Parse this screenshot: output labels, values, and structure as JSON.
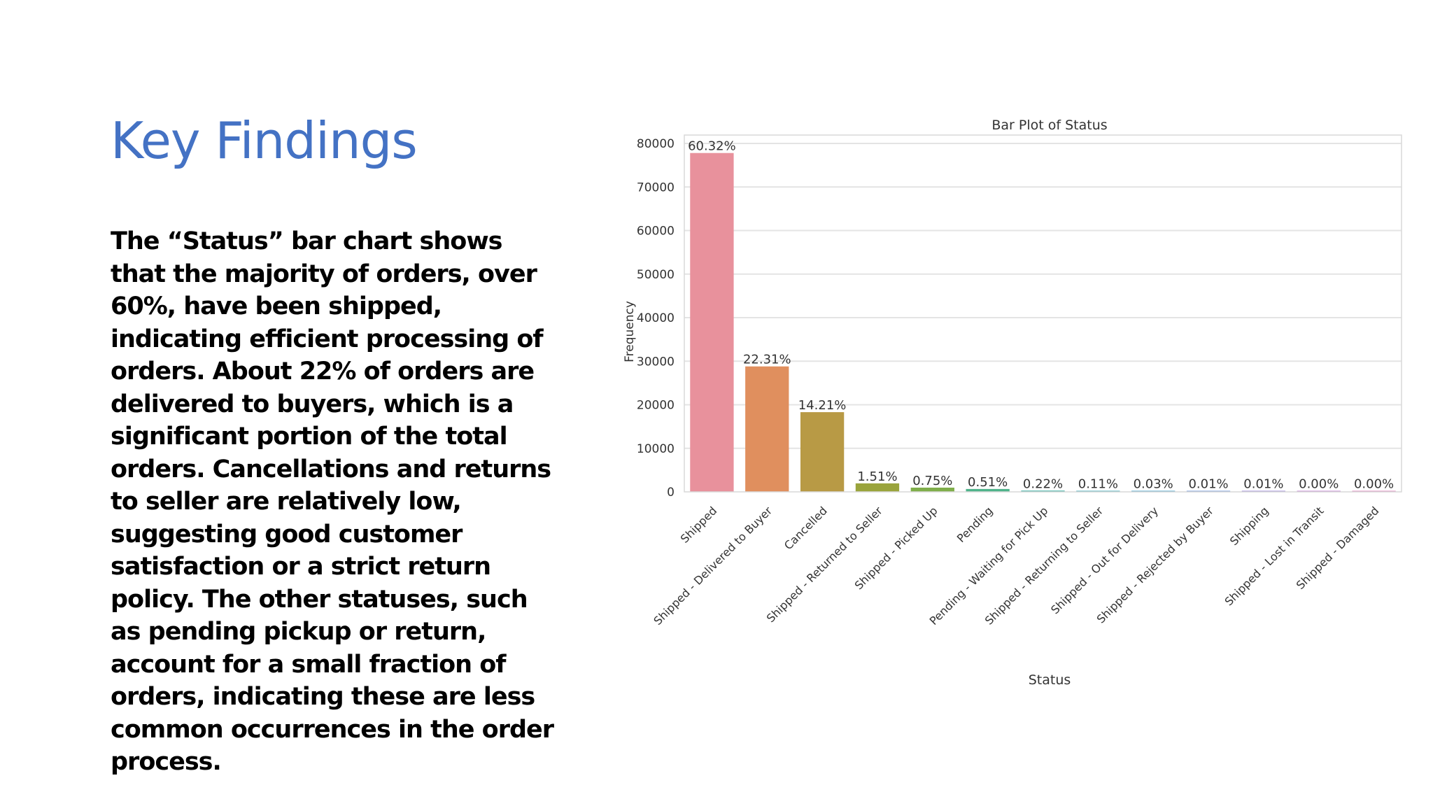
{
  "slide": {
    "title": "Key Findings",
    "body": "The “Status” bar chart shows that the majority of orders, over 60%, have been shipped, indicating efficient processing of orders. About 22% of orders are delivered to buyers, which is a significant portion of the total orders. Cancellations and returns to seller are relatively low, suggesting good customer satisfaction or a strict return policy. The other statuses, such as pending pickup or return, account for a small fraction of orders, indicating these are less common occurrences in the order process."
  },
  "colors": {
    "title": "#4472c4",
    "text": "#000000"
  },
  "chart_data": {
    "type": "bar",
    "title": "Bar Plot of Status",
    "xlabel": "Status",
    "ylabel": "Frequency",
    "ylim": [
      0,
      80000
    ],
    "yticks": [
      0,
      10000,
      20000,
      30000,
      40000,
      50000,
      60000,
      70000,
      80000
    ],
    "grid": true,
    "bars": [
      {
        "category": "Shipped",
        "value": 77800,
        "label": "60.32%",
        "color": "#e8919c"
      },
      {
        "category": "Shipped - Delivered to Buyer",
        "value": 28800,
        "label": "22.31%",
        "color": "#e08f5e"
      },
      {
        "category": "Cancelled",
        "value": 18300,
        "label": "14.21%",
        "color": "#b89a45"
      },
      {
        "category": "Shipped - Returned to Seller",
        "value": 1950,
        "label": "1.51%",
        "color": "#9aa43c"
      },
      {
        "category": "Shipped - Picked Up",
        "value": 970,
        "label": "0.75%",
        "color": "#7fae4a"
      },
      {
        "category": "Pending",
        "value": 660,
        "label": "0.51%",
        "color": "#4fb38a"
      },
      {
        "category": "Pending - Waiting for Pick Up",
        "value": 280,
        "label": "0.22%",
        "color": "#3fb0a3"
      },
      {
        "category": "Shipped - Returning to Seller",
        "value": 140,
        "label": "0.11%",
        "color": "#3daab5"
      },
      {
        "category": "Shipped - Out for Delivery",
        "value": 40,
        "label": "0.03%",
        "color": "#45a2c8"
      },
      {
        "category": "Shipped - Rejected by Buyer",
        "value": 10,
        "label": "0.01%",
        "color": "#6f95d8"
      },
      {
        "category": "Shipping",
        "value": 8,
        "label": "0.01%",
        "color": "#9a86d8"
      },
      {
        "category": "Shipped - Lost in Transit",
        "value": 4,
        "label": "0.00%",
        "color": "#c07fd0"
      },
      {
        "category": "Shipped - Damaged",
        "value": 1,
        "label": "0.00%",
        "color": "#e083bd"
      }
    ]
  }
}
